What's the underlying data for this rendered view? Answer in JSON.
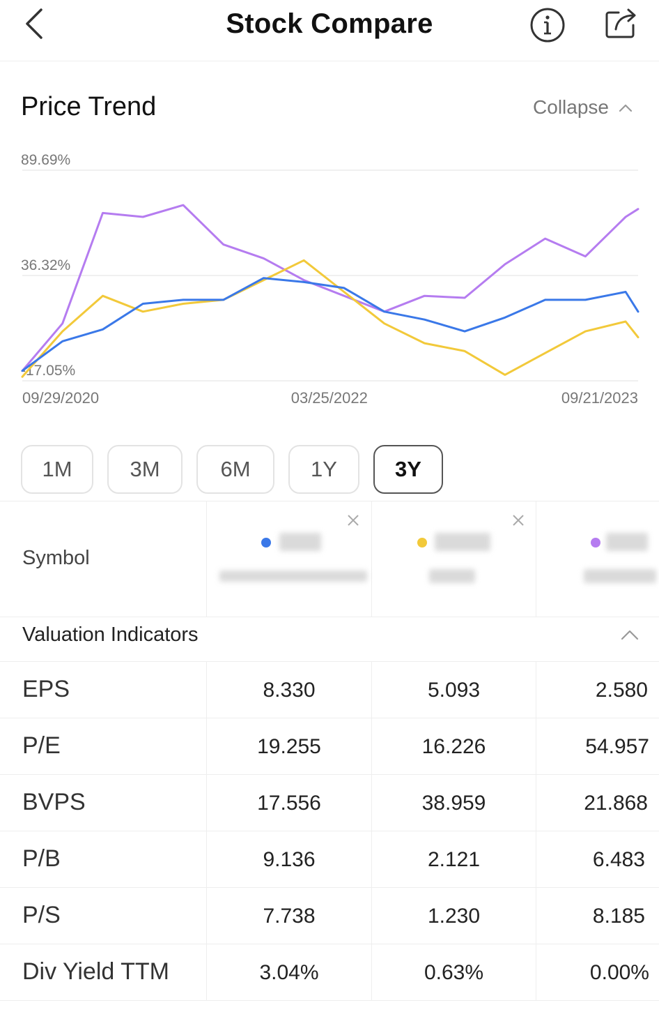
{
  "header": {
    "title": "Stock Compare"
  },
  "price_trend": {
    "title": "Price Trend",
    "collapse_label": "Collapse"
  },
  "chart_data": {
    "type": "line",
    "y_tick_labels": [
      "89.69%",
      "36.32%",
      "-17.05%"
    ],
    "y_ticks": [
      89.69,
      36.32,
      -17.05
    ],
    "ylim": [
      -17.05,
      89.69
    ],
    "x_tick_labels": [
      "09/29/2020",
      "03/25/2022",
      "09/21/2023"
    ],
    "xlim": [
      "09/29/2020",
      "09/21/2023"
    ],
    "grid": true,
    "legend": "none",
    "series": [
      {
        "color": "#3a78e8",
        "x": [
          "09/29/2020",
          "12/09/2020",
          "02/18/2021",
          "04/30/2021",
          "07/10/2021",
          "09/19/2021",
          "11/29/2021",
          "02/08/2022",
          "04/20/2022",
          "06/30/2022",
          "09/09/2022",
          "11/19/2022",
          "01/29/2023",
          "04/10/2023",
          "06/20/2023",
          "08/30/2023",
          "09/21/2023"
        ],
        "values": [
          -12,
          3,
          9,
          22,
          24,
          24,
          35,
          33,
          30,
          18,
          14,
          8,
          15,
          24,
          24,
          28,
          18
        ]
      },
      {
        "color": "#f2c93a",
        "x": [
          "09/29/2020",
          "12/09/2020",
          "02/18/2021",
          "04/30/2021",
          "07/10/2021",
          "09/19/2021",
          "11/29/2021",
          "02/08/2022",
          "04/20/2022",
          "06/30/2022",
          "09/09/2022",
          "11/19/2022",
          "01/29/2023",
          "04/10/2023",
          "06/20/2023",
          "08/30/2023",
          "09/21/2023"
        ],
        "values": [
          -15,
          8,
          26,
          18,
          22,
          24,
          34,
          44,
          28,
          12,
          2,
          -2,
          -14,
          -3,
          8,
          13,
          5
        ]
      },
      {
        "color": "#b57cf0",
        "x": [
          "09/29/2020",
          "12/09/2020",
          "02/18/2021",
          "04/30/2021",
          "07/10/2021",
          "09/19/2021",
          "11/29/2021",
          "02/08/2022",
          "04/20/2022",
          "06/30/2022",
          "09/09/2022",
          "11/19/2022",
          "01/29/2023",
          "04/10/2023",
          "06/20/2023",
          "08/30/2023",
          "09/21/2023"
        ],
        "values": [
          -12,
          12,
          68,
          66,
          72,
          52,
          45,
          34,
          26,
          18,
          26,
          25,
          42,
          55,
          46,
          66,
          70
        ]
      }
    ]
  },
  "periods": [
    "1M",
    "3M",
    "6M",
    "1Y",
    "3Y"
  ],
  "active_period": "3Y",
  "symbols": {
    "label": "Symbol",
    "colors": [
      "#3a78e8",
      "#f2c93a",
      "#b57cf0"
    ]
  },
  "valuation": {
    "title": "Valuation Indicators",
    "rows": [
      {
        "label": "EPS",
        "values": [
          "8.330",
          "5.093",
          "2.580"
        ]
      },
      {
        "label": "P/E",
        "values": [
          "19.255",
          "16.226",
          "54.957"
        ]
      },
      {
        "label": "BVPS",
        "values": [
          "17.556",
          "38.959",
          "21.868"
        ]
      },
      {
        "label": "P/B",
        "values": [
          "9.136",
          "2.121",
          "6.483"
        ]
      },
      {
        "label": "P/S",
        "values": [
          "7.738",
          "1.230",
          "8.185"
        ]
      },
      {
        "label": "Div Yield TTM",
        "values": [
          "3.04%",
          "0.63%",
          "0.00%"
        ]
      }
    ]
  }
}
